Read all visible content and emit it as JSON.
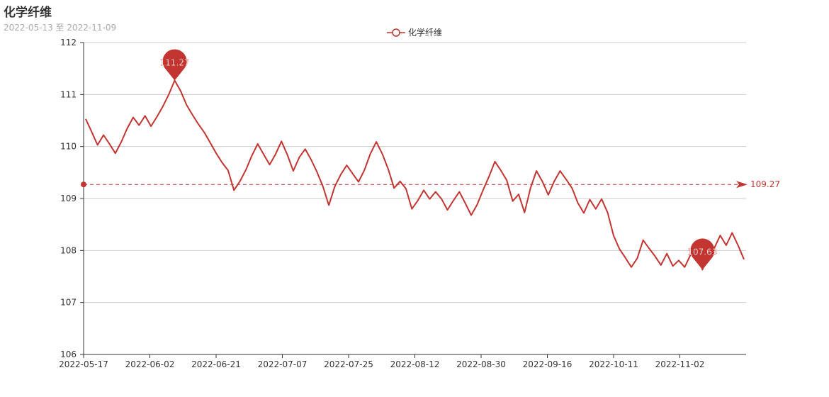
{
  "title": "化学纤维",
  "subtitle": "2022-05-13 至 2022-11-09",
  "colors": {
    "series": "#c23531",
    "grid": "#cccccc",
    "axis": "#333333"
  },
  "chart_data": {
    "type": "line",
    "title": "化学纤维",
    "subtitle": "2022-05-13 至 2022-11-09",
    "legend": {
      "position": "top-center",
      "entries": [
        "化学纤维"
      ]
    },
    "grid": {
      "horizontal": true,
      "vertical": false
    },
    "ylim": [
      106,
      112
    ],
    "y_ticks": [
      "106",
      "107",
      "108",
      "109",
      "110",
      "111",
      "112"
    ],
    "x_ticks": [
      "2022-05-17",
      "2022-06-02",
      "2022-06-21",
      "2022-07-07",
      "2022-07-25",
      "2022-08-12",
      "2022-08-30",
      "2022-09-16",
      "2022-10-11",
      "2022-11-02"
    ],
    "series": [
      {
        "name": "化学纤维",
        "values": [
          110.53,
          110.28,
          110.03,
          110.22,
          110.05,
          109.87,
          110.09,
          110.35,
          110.56,
          110.41,
          110.59,
          110.39,
          110.57,
          110.77,
          111.0,
          111.27,
          111.07,
          110.8,
          110.61,
          110.43,
          110.27,
          110.07,
          109.87,
          109.69,
          109.54,
          109.16,
          109.33,
          109.55,
          109.82,
          110.05,
          109.85,
          109.65,
          109.85,
          110.1,
          109.84,
          109.53,
          109.79,
          109.95,
          109.75,
          109.51,
          109.23,
          108.87,
          109.23,
          109.46,
          109.64,
          109.48,
          109.32,
          109.55,
          109.86,
          110.09,
          109.86,
          109.57,
          109.2,
          109.33,
          109.19,
          108.8,
          108.96,
          109.16,
          108.99,
          109.13,
          108.99,
          108.78,
          108.96,
          109.13,
          108.91,
          108.68,
          108.88,
          109.16,
          109.42,
          109.71,
          109.54,
          109.35,
          108.95,
          109.08,
          108.73,
          109.2,
          109.53,
          109.33,
          109.07,
          109.33,
          109.53,
          109.37,
          109.2,
          108.91,
          108.72,
          108.98,
          108.8,
          108.99,
          108.73,
          108.29,
          108.03,
          107.86,
          107.68,
          107.85,
          108.2,
          108.04,
          107.89,
          107.72,
          107.94,
          107.7,
          107.81,
          107.68,
          107.92,
          108.17,
          107.63,
          108.03,
          108.05,
          108.29,
          108.1,
          108.34,
          108.1,
          107.83
        ]
      }
    ],
    "mark_points": [
      {
        "type": "max",
        "index": 15,
        "label": "111.27"
      },
      {
        "type": "min",
        "index": 104,
        "label": "107.63"
      }
    ],
    "mark_line": {
      "type": "average",
      "value": 109.27,
      "label": "109.27"
    }
  }
}
